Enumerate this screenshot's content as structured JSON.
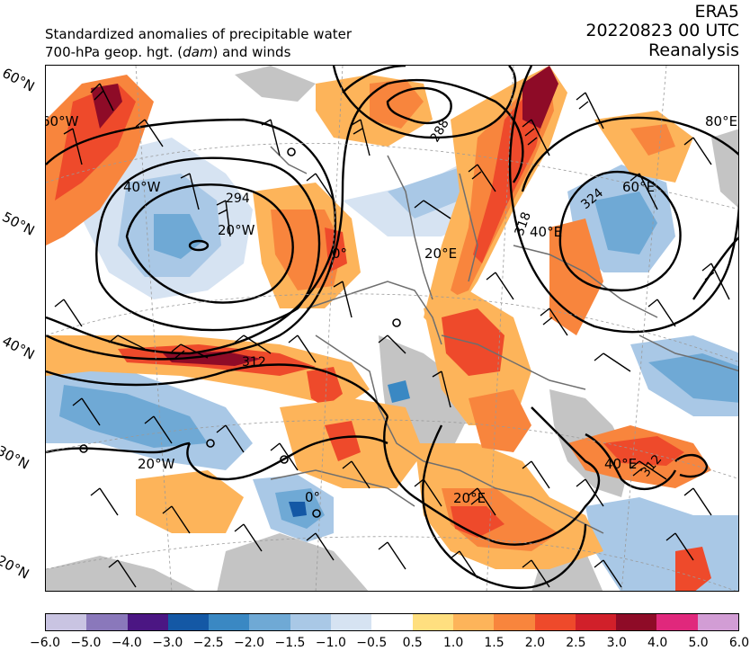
{
  "header": {
    "line1": "Standardized anomalies of precipitable water",
    "line2_pre": "700-hPa geop. hgt. (",
    "line2_unit": "dam",
    "line2_post": ") and winds",
    "source": "ERA5",
    "datetime": "20220823 00 UTC",
    "product": "Reanalysis"
  },
  "lat_labels": [
    "60°N",
    "50°N",
    "40°N",
    "30°N",
    "20°N"
  ],
  "grid_labels": [
    "60°W",
    "40°W",
    "20°W",
    "0°",
    "20°E",
    "60°E",
    "80°E",
    "40°E",
    "20°W",
    "0°",
    "20°E",
    "40°E"
  ],
  "contour_labels": [
    "288",
    "294",
    "312",
    "318",
    "324",
    "312"
  ],
  "colorbar": {
    "colors": [
      "#c9c4e2",
      "#8a78bb",
      "#4b1683",
      "#1458a5",
      "#3a88c3",
      "#6fa9d5",
      "#a9c8e6",
      "#d6e3f2",
      "#ffffff",
      "#ffdf7f",
      "#fdb45a",
      "#f8853d",
      "#ee4a2b",
      "#d1202a",
      "#8e0b27",
      "#e0287c",
      "#d29dd5"
    ],
    "ticks": [
      "−6.0",
      "−5.0",
      "−4.0",
      "−3.0",
      "−2.5",
      "−2.0",
      "−1.5",
      "−1.0",
      "−0.5",
      "0.5",
      "1.0",
      "1.5",
      "2.0",
      "2.5",
      "3.0",
      "4.0",
      "5.0",
      "6.0"
    ]
  },
  "palette": {
    "land_gray": "#c4c4c4",
    "border_gray": "#6e6e6e",
    "pos1": "#ffdf7f",
    "pos2": "#fdb45a",
    "pos3": "#f8853d",
    "pos4": "#ee4a2b",
    "pos5": "#d1202a",
    "pos6": "#8e0b27",
    "neg1": "#d6e3f2",
    "neg2": "#a9c8e6",
    "neg3": "#6fa9d5",
    "neg4": "#3a88c3",
    "neg5": "#1458a5"
  }
}
